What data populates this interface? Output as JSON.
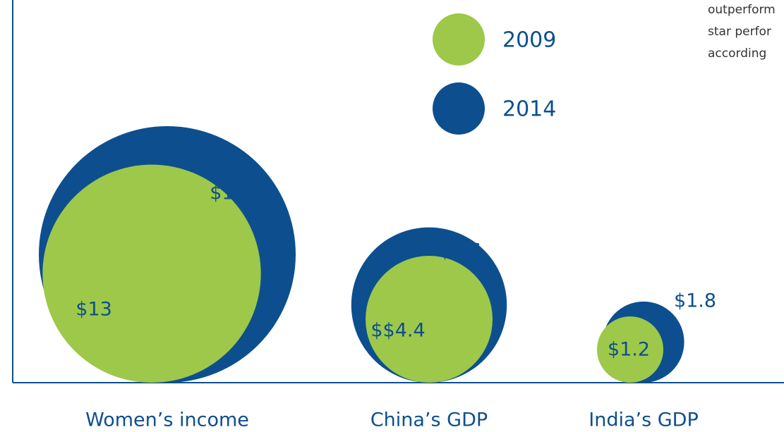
{
  "chart_data": {
    "type": "bubble",
    "categories": [
      "Women’s income",
      "China’s GDP",
      "India’s GDP"
    ],
    "series": [
      {
        "name": "2009",
        "color": "#9dc84a",
        "values": [
          13,
          4.4,
          1.2
        ],
        "value_labels": [
          "$13",
          "$$4.4",
          "$1.2"
        ]
      },
      {
        "name": "2014",
        "color": "#0d4f8e",
        "values": [
          18,
          6.6,
          1.8
        ],
        "value_labels": [
          "$18",
          "$6.6",
          "$1.8"
        ]
      }
    ],
    "annotations": [
      "outperform",
      "star perfor",
      "according"
    ]
  }
}
